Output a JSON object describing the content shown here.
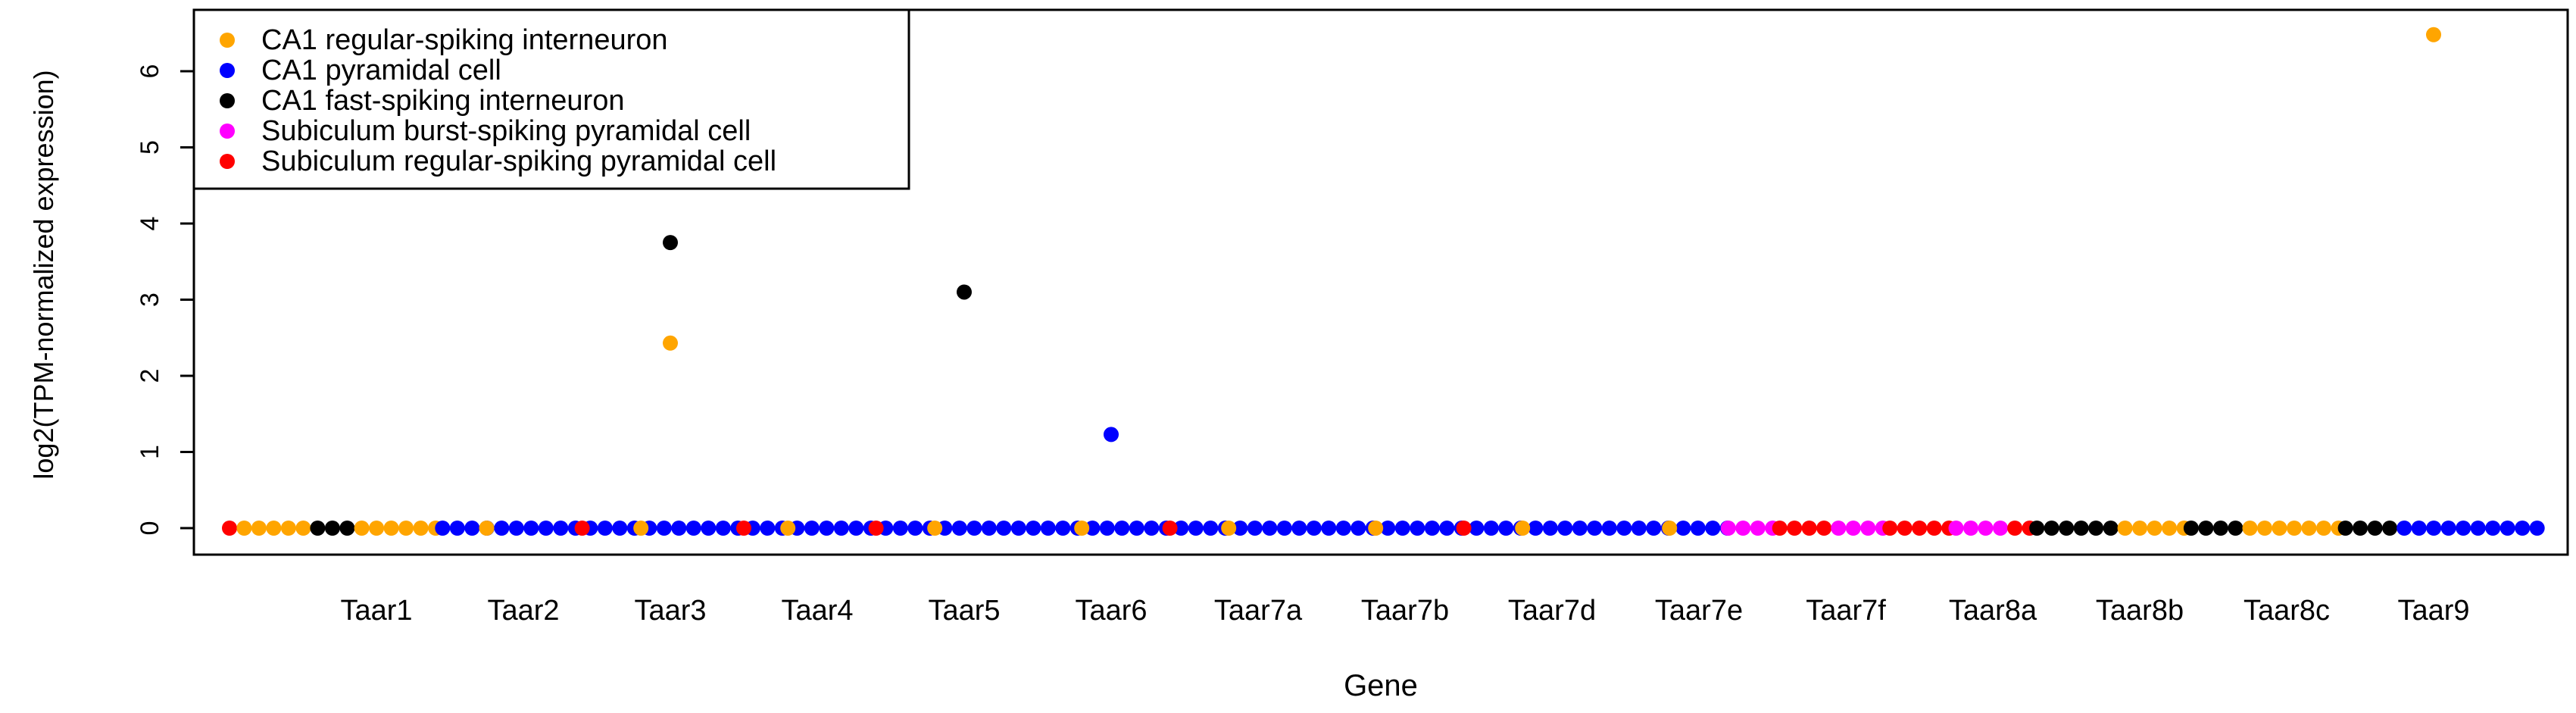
{
  "chart_data": {
    "type": "scatter",
    "title": "",
    "xlabel": "Gene",
    "ylabel": "log2(TPM-normalized expression)",
    "categories": [
      "Taar1",
      "Taar2",
      "Taar3",
      "Taar4",
      "Taar5",
      "Taar6",
      "Taar7a",
      "Taar7b",
      "Taar7d",
      "Taar7e",
      "Taar7f",
      "Taar8a",
      "Taar8b",
      "Taar8c",
      "Taar9"
    ],
    "ylim": [
      0,
      6.6
    ],
    "yticks": [
      0,
      1,
      2,
      3,
      4,
      5,
      6
    ],
    "grid": false,
    "legend_position": "top-left",
    "series": [
      {
        "name": "CA1 regular-spiking interneuron",
        "color": "#FFA500"
      },
      {
        "name": "CA1 pyramidal cell",
        "color": "#0000FF"
      },
      {
        "name": "CA1 fast-spiking interneuron",
        "color": "#000000"
      },
      {
        "name": "Subiculum burst-spiking pyramidal cell",
        "color": "#FF00FF"
      },
      {
        "name": "Subiculum regular-spiking pyramidal cell",
        "color": "#FF0000"
      }
    ],
    "highlighted_points": [
      {
        "category": "Taar3",
        "series": "CA1 fast-spiking interneuron",
        "value": 3.75
      },
      {
        "category": "Taar3",
        "series": "CA1 regular-spiking interneuron",
        "value": 2.43
      },
      {
        "category": "Taar5",
        "series": "CA1 fast-spiking interneuron",
        "value": 3.1
      },
      {
        "category": "Taar6",
        "series": "CA1 pyramidal cell",
        "value": 1.23
      },
      {
        "category": "Taar9",
        "series": "CA1 regular-spiking interneuron",
        "value": 6.48
      }
    ],
    "baseline_value": 0,
    "baseline_segments": [
      {
        "series": "Subiculum regular-spiking pyramidal cell",
        "from": 0,
        "to": 0.1
      },
      {
        "series": "CA1 regular-spiking interneuron",
        "from": 0.1,
        "to": 0.6
      },
      {
        "series": "CA1 fast-spiking interneuron",
        "from": 0.6,
        "to": 0.9
      },
      {
        "series": "CA1 regular-spiking interneuron",
        "from": 0.9,
        "to": 1.45
      },
      {
        "series": "CA1 pyramidal cell",
        "from": 1.45,
        "to": 10.2
      },
      {
        "series": "Subiculum burst-spiking pyramidal cell",
        "from": 10.2,
        "to": 10.55
      },
      {
        "series": "Subiculum regular-spiking pyramidal cell",
        "from": 10.55,
        "to": 10.95
      },
      {
        "series": "Subiculum burst-spiking pyramidal cell",
        "from": 10.95,
        "to": 11.3
      },
      {
        "series": "Subiculum regular-spiking pyramidal cell",
        "from": 11.3,
        "to": 11.75
      },
      {
        "series": "Subiculum burst-spiking pyramidal cell",
        "from": 11.75,
        "to": 12.15
      },
      {
        "series": "Subiculum regular-spiking pyramidal cell",
        "from": 12.15,
        "to": 12.3
      },
      {
        "series": "CA1 fast-spiking interneuron",
        "from": 12.3,
        "to": 12.9
      },
      {
        "series": "CA1 regular-spiking interneuron",
        "from": 12.9,
        "to": 13.35
      },
      {
        "series": "CA1 fast-spiking interneuron",
        "from": 13.35,
        "to": 13.75
      },
      {
        "series": "CA1 regular-spiking interneuron",
        "from": 13.75,
        "to": 14.4
      },
      {
        "series": "CA1 fast-spiking interneuron",
        "from": 14.4,
        "to": 14.8
      },
      {
        "series": "CA1 pyramidal cell",
        "from": 14.8,
        "to": 15.8
      }
    ],
    "baseline_accents": [
      {
        "series": "CA1 regular-spiking interneuron",
        "at": [
          1.75,
          2.8,
          3.8,
          4.8,
          5.8,
          6.8,
          7.8,
          8.8,
          9.8
        ]
      },
      {
        "series": "Subiculum regular-spiking pyramidal cell",
        "at": [
          2.4,
          3.5,
          4.4,
          6.4,
          8.4
        ]
      }
    ]
  }
}
